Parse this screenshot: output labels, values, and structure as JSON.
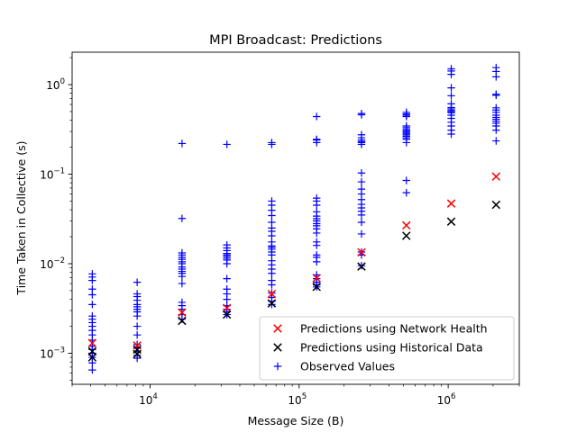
{
  "chart_data": {
    "type": "scatter",
    "title": "MPI Broadcast: Predictions",
    "xlabel": "Message Size (B)",
    "ylabel": "Time Taken in Collective (s)",
    "xscale": "log",
    "yscale": "log",
    "xlim": [
      3000,
      3000000
    ],
    "ylim": [
      0.00045,
      2.3
    ],
    "x_major_ticks": [
      {
        "value": 10000,
        "base": "10",
        "exp": "4"
      },
      {
        "value": 100000,
        "base": "10",
        "exp": "5"
      },
      {
        "value": 1000000,
        "base": "10",
        "exp": "6"
      }
    ],
    "y_major_ticks": [
      {
        "value": 0.001,
        "base": "10",
        "exp": "−3"
      },
      {
        "value": 0.01,
        "base": "10",
        "exp": "−2"
      },
      {
        "value": 0.1,
        "base": "10",
        "exp": "−1"
      },
      {
        "value": 1,
        "base": "10",
        "exp": "0"
      }
    ],
    "legend_position": "lower-right",
    "grid": false,
    "series": [
      {
        "name": "Predictions using Network Health",
        "marker": "x",
        "color": "#ff0000",
        "points": [
          [
            4096,
            0.0013
          ],
          [
            8192,
            0.00122
          ],
          [
            16384,
            0.00285
          ],
          [
            32768,
            0.0032
          ],
          [
            65536,
            0.0046
          ],
          [
            131072,
            0.0069
          ],
          [
            262144,
            0.0134
          ],
          [
            524288,
            0.0268
          ],
          [
            1048576,
            0.047
          ],
          [
            2097152,
            0.094
          ]
        ]
      },
      {
        "name": "Predictions using Historical Data",
        "marker": "x",
        "color": "#000000",
        "points": [
          [
            4096,
            0.0009
          ],
          [
            4096,
            0.00105
          ],
          [
            8192,
            0.00098
          ],
          [
            8192,
            0.0011
          ],
          [
            16384,
            0.0023
          ],
          [
            32768,
            0.0027
          ],
          [
            65536,
            0.0036
          ],
          [
            131072,
            0.0055
          ],
          [
            262144,
            0.0093
          ],
          [
            524288,
            0.0205
          ],
          [
            1048576,
            0.0295
          ],
          [
            2097152,
            0.0455
          ]
        ]
      },
      {
        "name": "Observed Values",
        "marker": "+",
        "color": "#0000ff",
        "points": [
          [
            4096,
            0.00065
          ],
          [
            4096,
            0.00078
          ],
          [
            4096,
            0.0009
          ],
          [
            4096,
            0.001
          ],
          [
            4096,
            0.0011
          ],
          [
            4096,
            0.0012
          ],
          [
            4096,
            0.0014
          ],
          [
            4096,
            0.0016
          ],
          [
            4096,
            0.0018
          ],
          [
            4096,
            0.002
          ],
          [
            4096,
            0.0022
          ],
          [
            4096,
            0.0024
          ],
          [
            4096,
            0.0026
          ],
          [
            4096,
            0.0035
          ],
          [
            4096,
            0.0045
          ],
          [
            4096,
            0.0052
          ],
          [
            4096,
            0.0065
          ],
          [
            4096,
            0.0071
          ],
          [
            4096,
            0.0077
          ],
          [
            8192,
            0.00088
          ],
          [
            8192,
            0.00095
          ],
          [
            8192,
            0.00105
          ],
          [
            8192,
            0.00115
          ],
          [
            8192,
            0.00125
          ],
          [
            8192,
            0.0016
          ],
          [
            8192,
            0.002
          ],
          [
            8192,
            0.0026
          ],
          [
            8192,
            0.0029
          ],
          [
            8192,
            0.0031
          ],
          [
            8192,
            0.0033
          ],
          [
            8192,
            0.0035
          ],
          [
            8192,
            0.0039
          ],
          [
            8192,
            0.0043
          ],
          [
            8192,
            0.0046
          ],
          [
            8192,
            0.0062
          ],
          [
            16384,
            0.0024
          ],
          [
            16384,
            0.0027
          ],
          [
            16384,
            0.0031
          ],
          [
            16384,
            0.0034
          ],
          [
            16384,
            0.0037
          ],
          [
            16384,
            0.006
          ],
          [
            16384,
            0.0072
          ],
          [
            16384,
            0.0078
          ],
          [
            16384,
            0.0082
          ],
          [
            16384,
            0.0087
          ],
          [
            16384,
            0.0092
          ],
          [
            16384,
            0.01
          ],
          [
            16384,
            0.0105
          ],
          [
            16384,
            0.0112
          ],
          [
            16384,
            0.0118
          ],
          [
            16384,
            0.0125
          ],
          [
            16384,
            0.0132
          ],
          [
            16384,
            0.032
          ],
          [
            16384,
            0.22
          ],
          [
            32768,
            0.0027
          ],
          [
            32768,
            0.0029
          ],
          [
            32768,
            0.0031
          ],
          [
            32768,
            0.0034
          ],
          [
            32768,
            0.004
          ],
          [
            32768,
            0.0046
          ],
          [
            32768,
            0.0052
          ],
          [
            32768,
            0.0068
          ],
          [
            32768,
            0.01
          ],
          [
            32768,
            0.011
          ],
          [
            32768,
            0.0115
          ],
          [
            32768,
            0.012
          ],
          [
            32768,
            0.0125
          ],
          [
            32768,
            0.013
          ],
          [
            32768,
            0.014
          ],
          [
            32768,
            0.015
          ],
          [
            32768,
            0.0162
          ],
          [
            32768,
            0.215
          ],
          [
            65536,
            0.0035
          ],
          [
            65536,
            0.0038
          ],
          [
            65536,
            0.0042
          ],
          [
            65536,
            0.0047
          ],
          [
            65536,
            0.0058
          ],
          [
            65536,
            0.0065
          ],
          [
            65536,
            0.0078
          ],
          [
            65536,
            0.0087
          ],
          [
            65536,
            0.0097
          ],
          [
            65536,
            0.0108
          ],
          [
            65536,
            0.0125
          ],
          [
            65536,
            0.0135
          ],
          [
            65536,
            0.0145
          ],
          [
            65536,
            0.0152
          ],
          [
            65536,
            0.0158
          ],
          [
            65536,
            0.0175
          ],
          [
            65536,
            0.0205
          ],
          [
            65536,
            0.023
          ],
          [
            65536,
            0.025
          ],
          [
            65536,
            0.029
          ],
          [
            65536,
            0.0345
          ],
          [
            65536,
            0.0395
          ],
          [
            65536,
            0.045
          ],
          [
            65536,
            0.05
          ],
          [
            65536,
            0.215
          ],
          [
            65536,
            0.225
          ],
          [
            131072,
            0.0055
          ],
          [
            131072,
            0.0058
          ],
          [
            131072,
            0.0062
          ],
          [
            131072,
            0.0068
          ],
          [
            131072,
            0.0075
          ],
          [
            131072,
            0.0105
          ],
          [
            131072,
            0.0118
          ],
          [
            131072,
            0.0125
          ],
          [
            131072,
            0.016
          ],
          [
            131072,
            0.0175
          ],
          [
            131072,
            0.022
          ],
          [
            131072,
            0.0245
          ],
          [
            131072,
            0.0265
          ],
          [
            131072,
            0.028
          ],
          [
            131072,
            0.03
          ],
          [
            131072,
            0.0318
          ],
          [
            131072,
            0.034
          ],
          [
            131072,
            0.038
          ],
          [
            131072,
            0.045
          ],
          [
            131072,
            0.05
          ],
          [
            131072,
            0.054
          ],
          [
            131072,
            0.225
          ],
          [
            131072,
            0.24
          ],
          [
            131072,
            0.245
          ],
          [
            131072,
            0.44
          ],
          [
            262144,
            0.0095
          ],
          [
            262144,
            0.0125
          ],
          [
            262144,
            0.0135
          ],
          [
            262144,
            0.0215
          ],
          [
            262144,
            0.029
          ],
          [
            262144,
            0.035
          ],
          [
            262144,
            0.0385
          ],
          [
            262144,
            0.042
          ],
          [
            262144,
            0.046
          ],
          [
            262144,
            0.052
          ],
          [
            262144,
            0.06
          ],
          [
            262144,
            0.068
          ],
          [
            262144,
            0.082
          ],
          [
            262144,
            0.103
          ],
          [
            262144,
            0.215
          ],
          [
            262144,
            0.225
          ],
          [
            262144,
            0.23
          ],
          [
            262144,
            0.24
          ],
          [
            262144,
            0.255
          ],
          [
            262144,
            0.275
          ],
          [
            262144,
            0.46
          ],
          [
            262144,
            0.475
          ],
          [
            524288,
            0.062
          ],
          [
            524288,
            0.085
          ],
          [
            524288,
            0.225
          ],
          [
            524288,
            0.245
          ],
          [
            524288,
            0.255
          ],
          [
            524288,
            0.265
          ],
          [
            524288,
            0.275
          ],
          [
            524288,
            0.285
          ],
          [
            524288,
            0.295
          ],
          [
            524288,
            0.305
          ],
          [
            524288,
            0.315
          ],
          [
            524288,
            0.33
          ],
          [
            524288,
            0.345
          ],
          [
            524288,
            0.44
          ],
          [
            524288,
            0.455
          ],
          [
            524288,
            0.47
          ],
          [
            524288,
            0.49
          ],
          [
            1048576,
            0.28
          ],
          [
            1048576,
            0.31
          ],
          [
            1048576,
            0.345
          ],
          [
            1048576,
            0.38
          ],
          [
            1048576,
            0.42
          ],
          [
            1048576,
            0.455
          ],
          [
            1048576,
            0.485
          ],
          [
            1048576,
            0.5
          ],
          [
            1048576,
            0.515
          ],
          [
            1048576,
            0.535
          ],
          [
            1048576,
            0.555
          ],
          [
            1048576,
            0.61
          ],
          [
            1048576,
            0.75
          ],
          [
            1048576,
            0.92
          ],
          [
            1048576,
            1.3
          ],
          [
            1048576,
            1.42
          ],
          [
            1048576,
            1.5
          ],
          [
            2097152,
            0.235
          ],
          [
            2097152,
            0.31
          ],
          [
            2097152,
            0.345
          ],
          [
            2097152,
            0.37
          ],
          [
            2097152,
            0.39
          ],
          [
            2097152,
            0.41
          ],
          [
            2097152,
            0.43
          ],
          [
            2097152,
            0.455
          ],
          [
            2097152,
            0.49
          ],
          [
            2097152,
            0.52
          ],
          [
            2097152,
            0.55
          ],
          [
            2097152,
            0.76
          ],
          [
            2097152,
            0.78
          ],
          [
            2097152,
            1.22
          ],
          [
            2097152,
            1.4
          ],
          [
            2097152,
            1.55
          ]
        ]
      }
    ]
  }
}
